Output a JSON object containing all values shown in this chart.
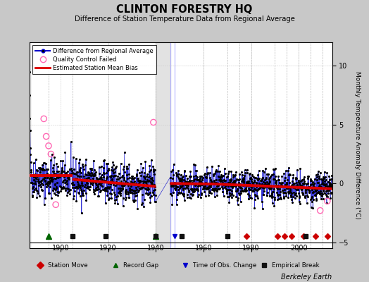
{
  "title": "CLINTON FORESTRY HQ",
  "subtitle": "Difference of Station Temperature Data from Regional Average",
  "ylabel": "Monthly Temperature Anomaly Difference (°C)",
  "credit": "Berkeley Earth",
  "xlim": [
    1887,
    2014
  ],
  "ylim_main": [
    -5.5,
    12
  ],
  "seed": 42,
  "bg_color": "#c8c8c8",
  "plot_bg_color": "#ffffff",
  "data_color": "#0000cc",
  "qc_color": "#ff69b4",
  "bias_color": "#dd0000",
  "station_move_color": "#cc0000",
  "record_gap_color": "#006400",
  "obs_change_color": "#0000cc",
  "empirical_break_color": "#111111",
  "bias_segments": [
    {
      "x_start": 1887,
      "x_end": 1905,
      "y_start": 0.65,
      "y_end": 0.65
    },
    {
      "x_start": 1905,
      "x_end": 1940,
      "y_start": 0.35,
      "y_end": -0.25
    },
    {
      "x_start": 1946,
      "x_end": 1965,
      "y_start": 0.0,
      "y_end": -0.05
    },
    {
      "x_start": 1965,
      "x_end": 2014,
      "y_start": -0.05,
      "y_end": -0.45
    }
  ],
  "vertical_lines_dashed": [
    1895,
    1905,
    1920,
    1940,
    1960,
    1970,
    1975,
    1980,
    1990,
    1995,
    2000,
    2005,
    2010
  ],
  "vertical_lines_solid_blue": [
    1946,
    1948
  ],
  "station_moves": [
    1978,
    1991,
    1994,
    1997,
    2002,
    2007,
    2012
  ],
  "record_gaps": [
    1895,
    1940
  ],
  "obs_changes": [
    1948
  ],
  "empirical_breaks": [
    1905,
    1919,
    1940,
    1951,
    1970,
    2003
  ],
  "qc_failed_years": [
    1893,
    1894,
    1895,
    1896,
    1898,
    1939,
    2009,
    2012
  ],
  "qc_failed_vals": [
    5.5,
    4.0,
    3.2,
    2.5,
    -1.8,
    5.2,
    -2.3,
    -1.5
  ],
  "marker_y": -4.5,
  "xtick_y": -5.2,
  "xticks": [
    1900,
    1920,
    1940,
    1960,
    1980,
    2000
  ]
}
